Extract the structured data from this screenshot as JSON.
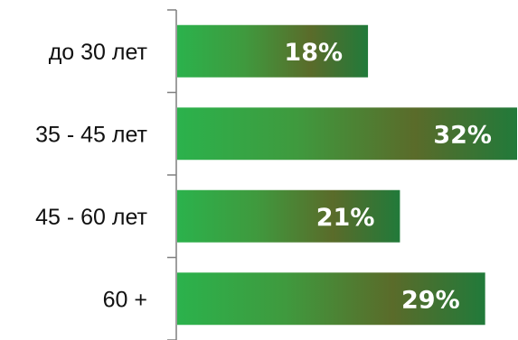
{
  "chart_data": {
    "type": "bar",
    "orientation": "horizontal",
    "categories": [
      "до 30 лет",
      "35 - 45 лет",
      "45 - 60 лет",
      "60 +"
    ],
    "values": [
      18,
      32,
      21,
      29
    ],
    "value_labels": [
      "18%",
      "32%",
      "21%",
      "29%"
    ],
    "unit": "%",
    "xlim": [
      0,
      32
    ],
    "grid": false,
    "legend": "none",
    "colors": {
      "bar_start": "#2bb24c",
      "bar_mid": "#5a6b2a",
      "bar_end": "#217a3a",
      "axis": "#7f7f7f"
    }
  }
}
